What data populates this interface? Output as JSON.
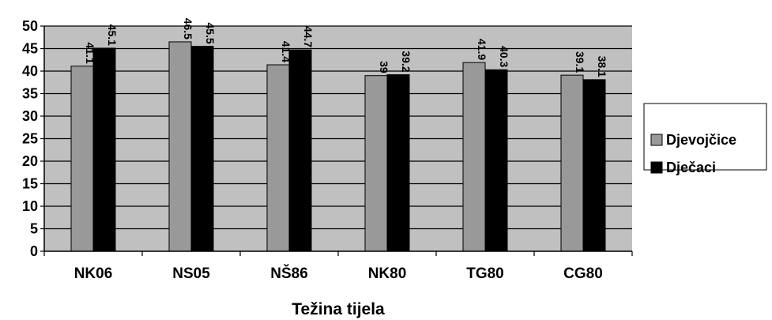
{
  "chart_data": {
    "type": "bar",
    "title": "",
    "xlabel": "Težina tijela",
    "ylabel": "",
    "categories": [
      "NK06",
      "NS05",
      "NŠ86",
      "NK80",
      "TG80",
      "CG80"
    ],
    "series": [
      {
        "name": "Djevojčice",
        "values": [
          41.1,
          46.5,
          41.4,
          39,
          41.9,
          39.1
        ],
        "labels": [
          "41.1",
          "46.5",
          "41.4",
          "39",
          "41.9",
          "39.1"
        ],
        "color": "#999999"
      },
      {
        "name": "Dječaci",
        "values": [
          45.1,
          45.5,
          44.7,
          39.2,
          40.3,
          38.1
        ],
        "labels": [
          "45.1",
          "45.5",
          "44.7",
          "39.2",
          "40.3",
          "38.1"
        ],
        "color": "#000000"
      }
    ],
    "ylim": [
      0,
      50
    ],
    "yticks": [
      0,
      5,
      10,
      15,
      20,
      25,
      30,
      35,
      40,
      45,
      50
    ],
    "plot_background": "#c0c0c0",
    "grid": true,
    "legend_position": "right"
  }
}
